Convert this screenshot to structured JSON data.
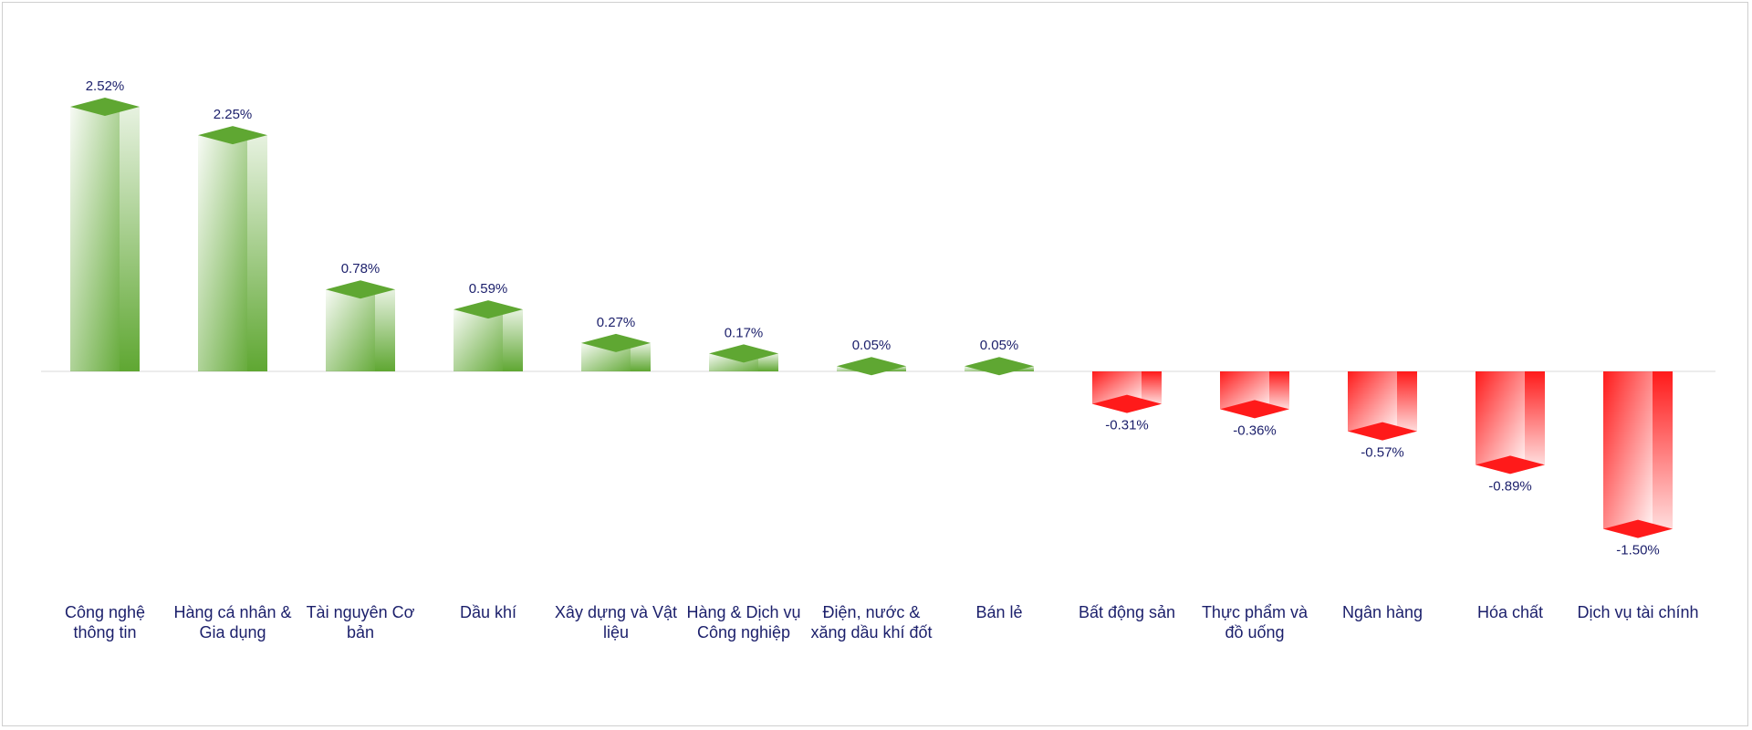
{
  "chart_data": {
    "type": "bar3d",
    "categories": [
      "Công nghệ thông tin",
      "Hàng cá nhân & Gia dụng",
      "Tài nguyên Cơ bản",
      "Dầu khí",
      "Xây dựng và Vật liệu",
      "Hàng & Dịch vụ Công nghiệp",
      "Điện, nước & xăng dầu khí đốt",
      "Bán lẻ",
      "Bất động sản",
      "Thực phẩm và đồ uống",
      "Ngân hàng",
      "Hóa chất",
      "Dịch vụ tài chính"
    ],
    "values": [
      2.52,
      2.25,
      0.78,
      0.59,
      0.27,
      0.17,
      0.05,
      0.05,
      -0.31,
      -0.36,
      -0.57,
      -0.89,
      -1.5
    ],
    "value_labels": [
      "2.52%",
      "2.25%",
      "0.78%",
      "0.59%",
      "0.27%",
      "0.17%",
      "0.05%",
      "0.05%",
      "-0.31%",
      "-0.36%",
      "-0.57%",
      "-0.89%",
      "-1.50%"
    ],
    "positive_color": "#5fa732",
    "negative_color": "#ff1a1a"
  }
}
